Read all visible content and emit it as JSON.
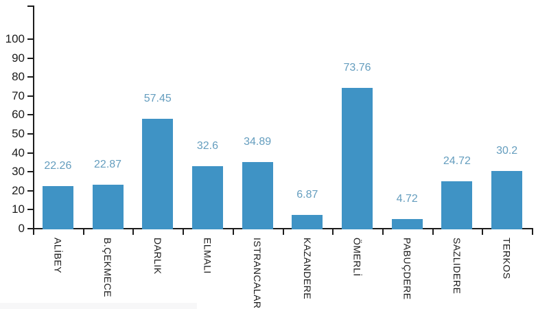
{
  "chart_data": {
    "type": "bar",
    "title": "",
    "xlabel": "",
    "ylabel": "",
    "categories": [
      "ALİBEY",
      "B.ÇEKMECE",
      "DARLIK",
      "ELMALI",
      "ISTRANCALAR",
      "KAZANDERE",
      "ÖMERLİ",
      "PABUÇDERE",
      "SAZLIDERE",
      "TERKOS"
    ],
    "values": [
      22.26,
      22.87,
      57.45,
      32.6,
      34.89,
      6.87,
      73.76,
      4.72,
      24.72,
      30.2
    ],
    "value_labels": [
      "22.26",
      "22.87",
      "57.45",
      "32.6",
      "34.89",
      "6.87",
      "73.76",
      "4.72",
      "24.72",
      "30.2"
    ],
    "yticks": [
      0,
      10,
      20,
      30,
      40,
      50,
      60,
      70,
      80,
      90,
      100
    ],
    "ylim": [
      0,
      117
    ],
    "grid": false,
    "legend": null,
    "colors": {
      "bar": "#3f93c5",
      "value_label": "#649dbe",
      "axis": "#1b1b1b",
      "tick_label": "#1b1b1b",
      "footer_strip": "#f7f7f8",
      "background": "#ffffff"
    }
  }
}
